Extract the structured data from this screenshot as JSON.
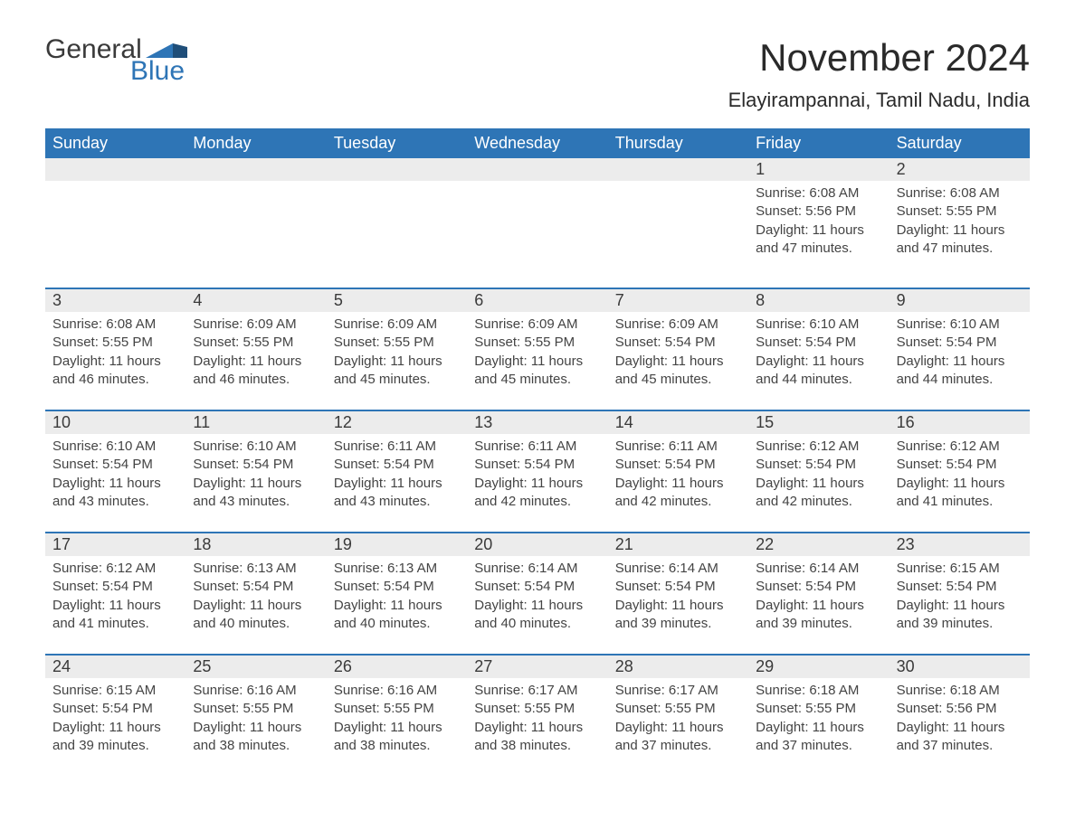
{
  "logo": {
    "word1": "General",
    "word2": "Blue",
    "text_color": "#3a3a3a",
    "accent_color": "#2e75b6",
    "font_size": 30
  },
  "header": {
    "month_title": "November 2024",
    "location": "Elayirampannai, Tamil Nadu, India",
    "title_fontsize": 42,
    "location_fontsize": 22,
    "title_color": "#2a2a2a"
  },
  "calendar": {
    "type": "table",
    "header_bg": "#2e75b6",
    "header_text_color": "#ffffff",
    "daynum_bg": "#ececec",
    "row_border_color": "#2e75b6",
    "body_text_color": "#444444",
    "weekdays": [
      "Sunday",
      "Monday",
      "Tuesday",
      "Wednesday",
      "Thursday",
      "Friday",
      "Saturday"
    ],
    "weeks": [
      [
        null,
        null,
        null,
        null,
        null,
        {
          "n": "1",
          "sunrise": "Sunrise: 6:08 AM",
          "sunset": "Sunset: 5:56 PM",
          "daylight1": "Daylight: 11 hours",
          "daylight2": "and 47 minutes."
        },
        {
          "n": "2",
          "sunrise": "Sunrise: 6:08 AM",
          "sunset": "Sunset: 5:55 PM",
          "daylight1": "Daylight: 11 hours",
          "daylight2": "and 47 minutes."
        }
      ],
      [
        {
          "n": "3",
          "sunrise": "Sunrise: 6:08 AM",
          "sunset": "Sunset: 5:55 PM",
          "daylight1": "Daylight: 11 hours",
          "daylight2": "and 46 minutes."
        },
        {
          "n": "4",
          "sunrise": "Sunrise: 6:09 AM",
          "sunset": "Sunset: 5:55 PM",
          "daylight1": "Daylight: 11 hours",
          "daylight2": "and 46 minutes."
        },
        {
          "n": "5",
          "sunrise": "Sunrise: 6:09 AM",
          "sunset": "Sunset: 5:55 PM",
          "daylight1": "Daylight: 11 hours",
          "daylight2": "and 45 minutes."
        },
        {
          "n": "6",
          "sunrise": "Sunrise: 6:09 AM",
          "sunset": "Sunset: 5:55 PM",
          "daylight1": "Daylight: 11 hours",
          "daylight2": "and 45 minutes."
        },
        {
          "n": "7",
          "sunrise": "Sunrise: 6:09 AM",
          "sunset": "Sunset: 5:54 PM",
          "daylight1": "Daylight: 11 hours",
          "daylight2": "and 45 minutes."
        },
        {
          "n": "8",
          "sunrise": "Sunrise: 6:10 AM",
          "sunset": "Sunset: 5:54 PM",
          "daylight1": "Daylight: 11 hours",
          "daylight2": "and 44 minutes."
        },
        {
          "n": "9",
          "sunrise": "Sunrise: 6:10 AM",
          "sunset": "Sunset: 5:54 PM",
          "daylight1": "Daylight: 11 hours",
          "daylight2": "and 44 minutes."
        }
      ],
      [
        {
          "n": "10",
          "sunrise": "Sunrise: 6:10 AM",
          "sunset": "Sunset: 5:54 PM",
          "daylight1": "Daylight: 11 hours",
          "daylight2": "and 43 minutes."
        },
        {
          "n": "11",
          "sunrise": "Sunrise: 6:10 AM",
          "sunset": "Sunset: 5:54 PM",
          "daylight1": "Daylight: 11 hours",
          "daylight2": "and 43 minutes."
        },
        {
          "n": "12",
          "sunrise": "Sunrise: 6:11 AM",
          "sunset": "Sunset: 5:54 PM",
          "daylight1": "Daylight: 11 hours",
          "daylight2": "and 43 minutes."
        },
        {
          "n": "13",
          "sunrise": "Sunrise: 6:11 AM",
          "sunset": "Sunset: 5:54 PM",
          "daylight1": "Daylight: 11 hours",
          "daylight2": "and 42 minutes."
        },
        {
          "n": "14",
          "sunrise": "Sunrise: 6:11 AM",
          "sunset": "Sunset: 5:54 PM",
          "daylight1": "Daylight: 11 hours",
          "daylight2": "and 42 minutes."
        },
        {
          "n": "15",
          "sunrise": "Sunrise: 6:12 AM",
          "sunset": "Sunset: 5:54 PM",
          "daylight1": "Daylight: 11 hours",
          "daylight2": "and 42 minutes."
        },
        {
          "n": "16",
          "sunrise": "Sunrise: 6:12 AM",
          "sunset": "Sunset: 5:54 PM",
          "daylight1": "Daylight: 11 hours",
          "daylight2": "and 41 minutes."
        }
      ],
      [
        {
          "n": "17",
          "sunrise": "Sunrise: 6:12 AM",
          "sunset": "Sunset: 5:54 PM",
          "daylight1": "Daylight: 11 hours",
          "daylight2": "and 41 minutes."
        },
        {
          "n": "18",
          "sunrise": "Sunrise: 6:13 AM",
          "sunset": "Sunset: 5:54 PM",
          "daylight1": "Daylight: 11 hours",
          "daylight2": "and 40 minutes."
        },
        {
          "n": "19",
          "sunrise": "Sunrise: 6:13 AM",
          "sunset": "Sunset: 5:54 PM",
          "daylight1": "Daylight: 11 hours",
          "daylight2": "and 40 minutes."
        },
        {
          "n": "20",
          "sunrise": "Sunrise: 6:14 AM",
          "sunset": "Sunset: 5:54 PM",
          "daylight1": "Daylight: 11 hours",
          "daylight2": "and 40 minutes."
        },
        {
          "n": "21",
          "sunrise": "Sunrise: 6:14 AM",
          "sunset": "Sunset: 5:54 PM",
          "daylight1": "Daylight: 11 hours",
          "daylight2": "and 39 minutes."
        },
        {
          "n": "22",
          "sunrise": "Sunrise: 6:14 AM",
          "sunset": "Sunset: 5:54 PM",
          "daylight1": "Daylight: 11 hours",
          "daylight2": "and 39 minutes."
        },
        {
          "n": "23",
          "sunrise": "Sunrise: 6:15 AM",
          "sunset": "Sunset: 5:54 PM",
          "daylight1": "Daylight: 11 hours",
          "daylight2": "and 39 minutes."
        }
      ],
      [
        {
          "n": "24",
          "sunrise": "Sunrise: 6:15 AM",
          "sunset": "Sunset: 5:54 PM",
          "daylight1": "Daylight: 11 hours",
          "daylight2": "and 39 minutes."
        },
        {
          "n": "25",
          "sunrise": "Sunrise: 6:16 AM",
          "sunset": "Sunset: 5:55 PM",
          "daylight1": "Daylight: 11 hours",
          "daylight2": "and 38 minutes."
        },
        {
          "n": "26",
          "sunrise": "Sunrise: 6:16 AM",
          "sunset": "Sunset: 5:55 PM",
          "daylight1": "Daylight: 11 hours",
          "daylight2": "and 38 minutes."
        },
        {
          "n": "27",
          "sunrise": "Sunrise: 6:17 AM",
          "sunset": "Sunset: 5:55 PM",
          "daylight1": "Daylight: 11 hours",
          "daylight2": "and 38 minutes."
        },
        {
          "n": "28",
          "sunrise": "Sunrise: 6:17 AM",
          "sunset": "Sunset: 5:55 PM",
          "daylight1": "Daylight: 11 hours",
          "daylight2": "and 37 minutes."
        },
        {
          "n": "29",
          "sunrise": "Sunrise: 6:18 AM",
          "sunset": "Sunset: 5:55 PM",
          "daylight1": "Daylight: 11 hours",
          "daylight2": "and 37 minutes."
        },
        {
          "n": "30",
          "sunrise": "Sunrise: 6:18 AM",
          "sunset": "Sunset: 5:56 PM",
          "daylight1": "Daylight: 11 hours",
          "daylight2": "and 37 minutes."
        }
      ]
    ]
  }
}
